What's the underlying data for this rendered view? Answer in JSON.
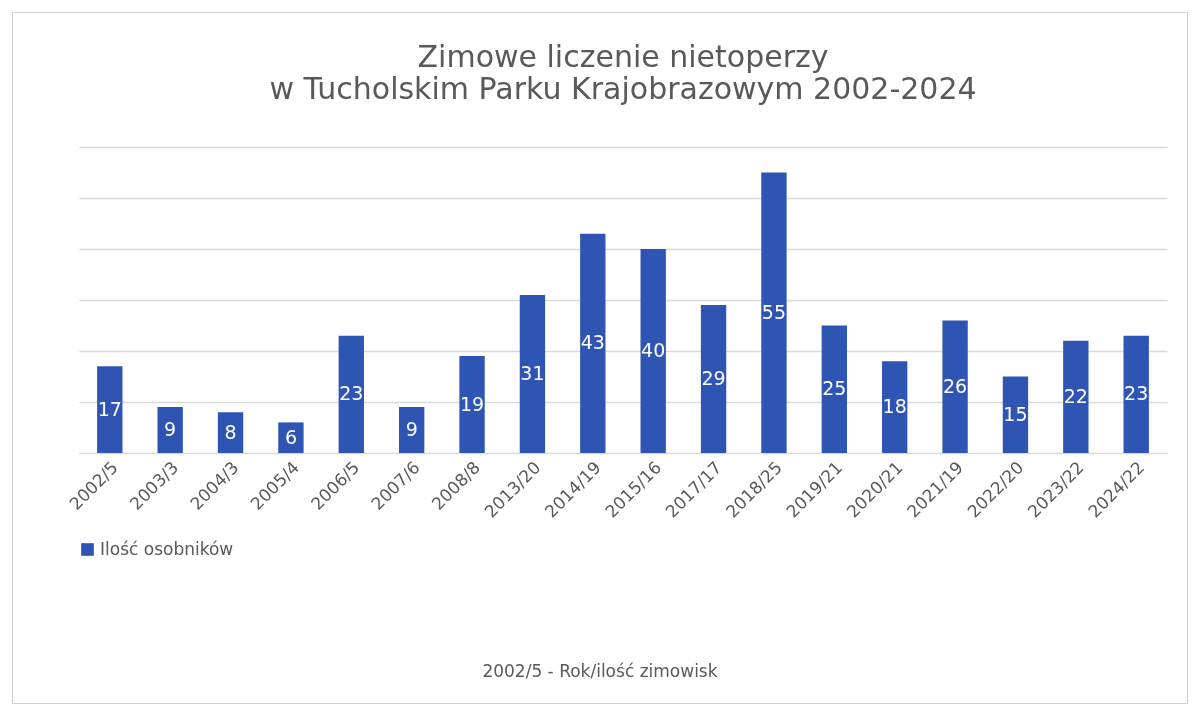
{
  "chart_data": {
    "type": "bar",
    "title": "Zimowe liczenie nietoperzy\nw Tucholskim Parku Krajobrazowym 2002-2024",
    "categories": [
      "2002/5",
      "2003/3",
      "2004/3",
      "2005/4",
      "2006/5",
      "2007/6",
      "2008/8",
      "2013/20",
      "2014/19",
      "2015/16",
      "2017/17",
      "2018/25",
      "2019/21",
      "2020/21",
      "2021/19",
      "2022/20",
      "2023/22",
      "2024/22"
    ],
    "series": [
      {
        "name": "Ilość osobników",
        "color": "#2f55b4",
        "values": [
          17,
          9,
          8,
          6,
          23,
          9,
          19,
          31,
          43,
          40,
          29,
          55,
          25,
          18,
          26,
          15,
          22,
          23
        ]
      }
    ],
    "data_labels": true,
    "ylim": [
      0,
      60
    ],
    "yticks": [
      {
        "value": 0,
        "label": null
      },
      {
        "value": 10,
        "label": null
      },
      {
        "value": 20,
        "label": null
      },
      {
        "value": 30,
        "label": null
      },
      {
        "value": 40,
        "label": null
      },
      {
        "value": 50,
        "label": null
      },
      {
        "value": 60,
        "label": null
      }
    ],
    "tick_labels": "x",
    "grid": "y",
    "legend": "bottom",
    "annotations": [
      "2002/5 - Rok/ilość zimowisk"
    ]
  }
}
